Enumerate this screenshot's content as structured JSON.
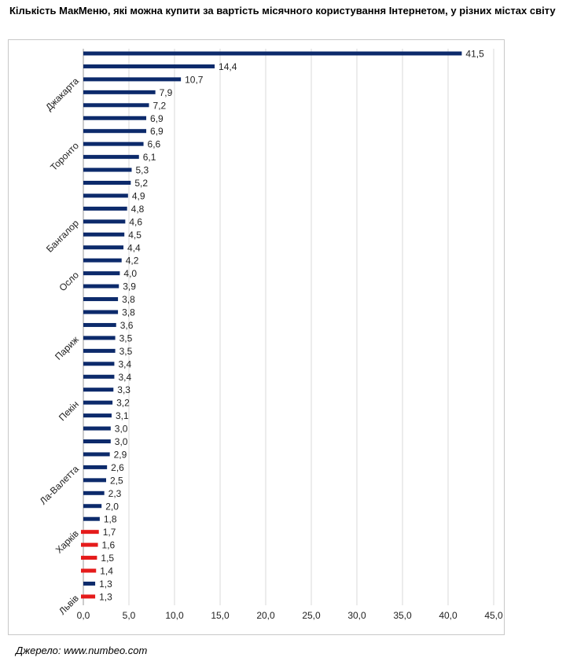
{
  "title": "Кількість МакМеню, які можна купити за вартість місячного користування Інтернетом, у різних містах світу",
  "source": "Джерело: www.numbeo.com",
  "colors": {
    "bar": "#0c2a6b",
    "highlight": "#e51b1b",
    "grid": "#d9d9d9"
  },
  "chart_data": {
    "type": "bar",
    "orientation": "horizontal",
    "title": "Кількість МакМеню, які можна купити за вартість місячного користування Інтернетом, у різних містах світу",
    "xlabel": "",
    "ylabel": "",
    "xlim": [
      0,
      45
    ],
    "xticks": [
      "0,0",
      "5,0",
      "10,0",
      "15,0",
      "20,0",
      "25,0",
      "30,0",
      "35,0",
      "40,0",
      "45,0"
    ],
    "grid": true,
    "values": [
      41.5,
      14.4,
      10.7,
      7.9,
      7.2,
      6.9,
      6.9,
      6.6,
      6.1,
      5.3,
      5.2,
      4.9,
      4.8,
      4.6,
      4.5,
      4.4,
      4.2,
      4.0,
      3.9,
      3.8,
      3.8,
      3.6,
      3.5,
      3.5,
      3.4,
      3.4,
      3.3,
      3.2,
      3.1,
      3.0,
      3.0,
      2.9,
      2.6,
      2.5,
      2.3,
      2.0,
      1.8,
      1.7,
      1.6,
      1.5,
      1.4,
      1.3,
      1.3
    ],
    "value_labels": [
      "41,5",
      "14,4",
      "10,7",
      "7,9",
      "7,2",
      "6,9",
      "6,9",
      "6,6",
      "6,1",
      "5,3",
      "5,2",
      "4,9",
      "4,8",
      "4,6",
      "4,5",
      "4,4",
      "4,2",
      "4,0",
      "3,9",
      "3,8",
      "3,8",
      "3,6",
      "3,5",
      "3,5",
      "3,4",
      "3,4",
      "3,3",
      "3,2",
      "3,1",
      "3,0",
      "3,0",
      "2,9",
      "2,6",
      "2,5",
      "2,3",
      "2,0",
      "1,8",
      "1,7",
      "1,6",
      "1,5",
      "1,4",
      "1,3",
      "1,3"
    ],
    "highlighted": [
      37,
      38,
      39,
      40,
      42
    ],
    "category_labels": [
      {
        "label": "Джакарта",
        "index": 2
      },
      {
        "label": "Торонто",
        "index": 7
      },
      {
        "label": "Бангалор",
        "index": 13
      },
      {
        "label": "Осло",
        "index": 17
      },
      {
        "label": "Париж",
        "index": 22
      },
      {
        "label": "Пекін",
        "index": 27
      },
      {
        "label": "Ла-Валетта",
        "index": 32
      },
      {
        "label": "Харків",
        "index": 37
      },
      {
        "label": "Львів",
        "index": 42
      }
    ]
  }
}
